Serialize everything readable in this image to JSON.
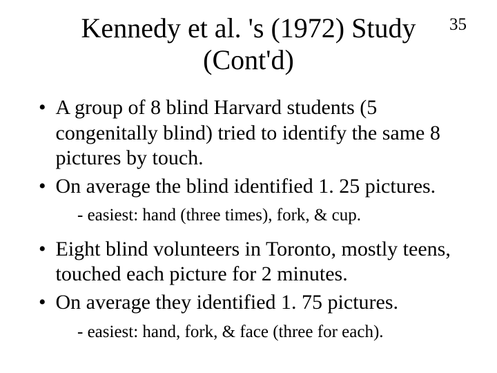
{
  "pageNumber": "35",
  "title": "Kennedy et al. 's (1972) Study (Cont'd)",
  "bullets": [
    {
      "text": "A group of 8 blind Harvard students (5 congenitally blind) tried to identify the same 8 pictures by touch."
    },
    {
      "text": "On average the blind identified 1. 25 pictures."
    }
  ],
  "sub1": "- easiest: hand (three times), fork, & cup.",
  "bullets2": [
    {
      "text": "Eight blind volunteers in Toronto, mostly teens, touched each picture for 2 minutes."
    },
    {
      "text": "On average they identified 1. 75 pictures."
    }
  ],
  "sub2": "- easiest: hand, fork, & face (three for each).",
  "dot": "•"
}
